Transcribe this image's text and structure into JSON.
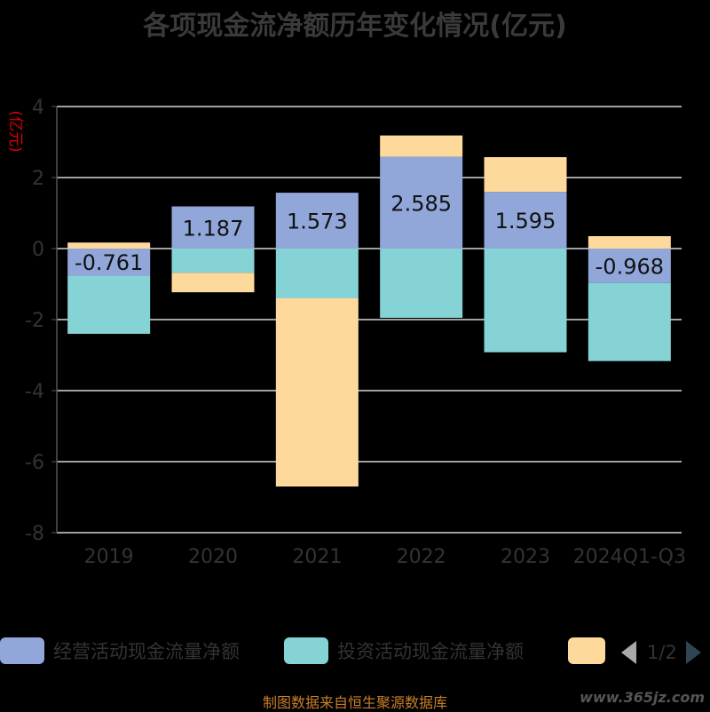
{
  "chart_data": {
    "type": "bar",
    "stacked": true,
    "title": "各项现金流净额历年变化情况(亿元)",
    "ylabel": "(亿元)",
    "categories": [
      "2019",
      "2020",
      "2021",
      "2022",
      "2023",
      "2024Q1-Q3"
    ],
    "ylim": [
      -8,
      4
    ],
    "yticks": [
      4,
      2,
      0,
      -2,
      -4,
      -6,
      -8
    ],
    "grid": true,
    "legend_position": "bottom",
    "series": [
      {
        "name": "经营活动现金流量净额",
        "color": "#91a7d9",
        "values": [
          -0.761,
          1.187,
          1.573,
          2.585,
          1.595,
          -0.968
        ],
        "labels": [
          "-0.761",
          "1.187",
          "1.573",
          "2.585",
          "1.595",
          "-0.968"
        ]
      },
      {
        "name": "投资活动现金流量净额",
        "color": "#86d3d6",
        "values": [
          -1.64,
          -0.68,
          -1.4,
          -1.95,
          -2.92,
          -2.2
        ]
      },
      {
        "name": "",
        "color": "#fdd99c",
        "values": [
          0.17,
          -0.55,
          -5.3,
          0.6,
          0.98,
          0.35
        ]
      }
    ]
  },
  "legend": {
    "items": [
      {
        "label": "经营活动现金流量净额",
        "color": "#91a7d9"
      },
      {
        "label": "投资活动现金流量净额",
        "color": "#86d3d6"
      },
      {
        "label": "",
        "color": "#fdd99c"
      }
    ],
    "page": "1/2"
  },
  "footer": {
    "source": "制图数据来自恒生聚源数据库",
    "watermark": "www.365jz.com"
  }
}
